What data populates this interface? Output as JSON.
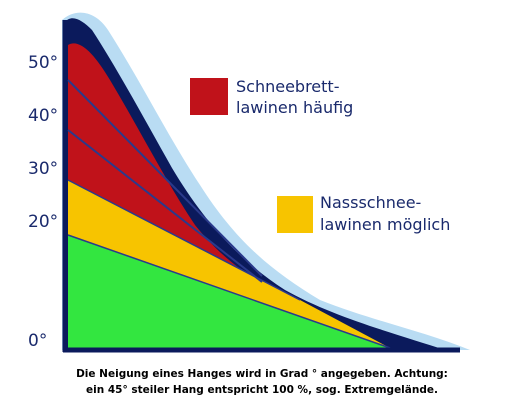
{
  "axis_labels": [
    "50°",
    "40°",
    "30°",
    "20°",
    "0°"
  ],
  "legend": [
    {
      "lines": [
        "Schneebrett-",
        "lawinen häufig"
      ]
    },
    {
      "lines": [
        "Nassschnee-",
        "lawinen möglich"
      ]
    }
  ],
  "caption": [
    "Die Neigung eines Hanges wird in Grad ° angegeben. Achtung:",
    "ein 45° steiler Hang entspricht 100 %, sog. Extremgelände."
  ]
}
